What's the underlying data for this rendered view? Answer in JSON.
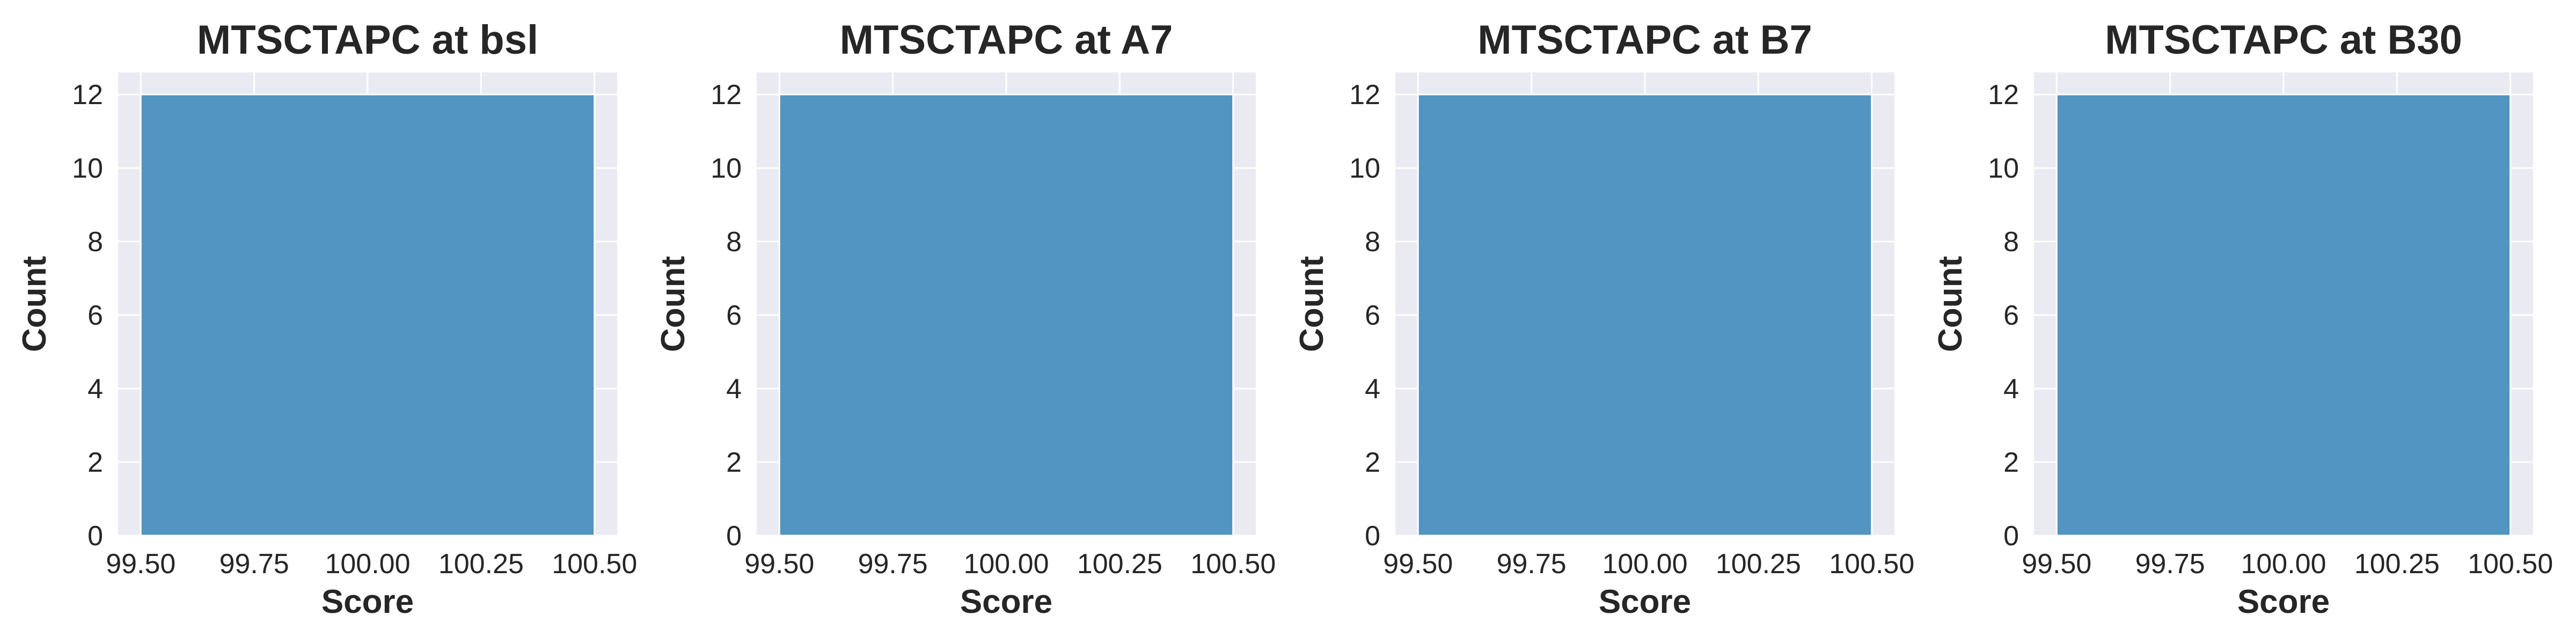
{
  "style": {
    "plot_background": "#eaeaf2",
    "grid_color": "#ffffff",
    "bar_color": "#5294c2",
    "bar_edge_color": "#ffffff",
    "text_color": "#262626"
  },
  "chart_data": [
    {
      "type": "bar",
      "title": "MTSCTAPC at bsl",
      "xlabel": "Score",
      "ylabel": "Count",
      "bins": [
        [
          99.5,
          100.5
        ]
      ],
      "values": [
        12
      ],
      "xlim": [
        99.45,
        100.55
      ],
      "ylim": [
        0,
        12.6
      ],
      "xticks": [
        99.5,
        99.75,
        100.0,
        100.25,
        100.5
      ],
      "xtick_labels": [
        "99.50",
        "99.75",
        "100.00",
        "100.25",
        "100.50"
      ],
      "yticks": [
        0,
        2,
        4,
        6,
        8,
        10,
        12
      ],
      "ytick_labels": [
        "0",
        "2",
        "4",
        "6",
        "8",
        "10",
        "12"
      ],
      "grid": true
    },
    {
      "type": "bar",
      "title": "MTSCTAPC at A7",
      "xlabel": "Score",
      "ylabel": "Count",
      "bins": [
        [
          99.5,
          100.5
        ]
      ],
      "values": [
        12
      ],
      "xlim": [
        99.45,
        100.55
      ],
      "ylim": [
        0,
        12.6
      ],
      "xticks": [
        99.5,
        99.75,
        100.0,
        100.25,
        100.5
      ],
      "xtick_labels": [
        "99.50",
        "99.75",
        "100.00",
        "100.25",
        "100.50"
      ],
      "yticks": [
        0,
        2,
        4,
        6,
        8,
        10,
        12
      ],
      "ytick_labels": [
        "0",
        "2",
        "4",
        "6",
        "8",
        "10",
        "12"
      ],
      "grid": true
    },
    {
      "type": "bar",
      "title": "MTSCTAPC at B7",
      "xlabel": "Score",
      "ylabel": "Count",
      "bins": [
        [
          99.5,
          100.5
        ]
      ],
      "values": [
        12
      ],
      "xlim": [
        99.45,
        100.55
      ],
      "ylim": [
        0,
        12.6
      ],
      "xticks": [
        99.5,
        99.75,
        100.0,
        100.25,
        100.5
      ],
      "xtick_labels": [
        "99.50",
        "99.75",
        "100.00",
        "100.25",
        "100.50"
      ],
      "yticks": [
        0,
        2,
        4,
        6,
        8,
        10,
        12
      ],
      "ytick_labels": [
        "0",
        "2",
        "4",
        "6",
        "8",
        "10",
        "12"
      ],
      "grid": true
    },
    {
      "type": "bar",
      "title": "MTSCTAPC at B30",
      "xlabel": "Score",
      "ylabel": "Count",
      "bins": [
        [
          99.5,
          100.5
        ]
      ],
      "values": [
        12
      ],
      "xlim": [
        99.45,
        100.55
      ],
      "ylim": [
        0,
        12.6
      ],
      "xticks": [
        99.5,
        99.75,
        100.0,
        100.25,
        100.5
      ],
      "xtick_labels": [
        "99.50",
        "99.75",
        "100.00",
        "100.25",
        "100.50"
      ],
      "yticks": [
        0,
        2,
        4,
        6,
        8,
        10,
        12
      ],
      "ytick_labels": [
        "0",
        "2",
        "4",
        "6",
        "8",
        "10",
        "12"
      ],
      "grid": true
    }
  ]
}
